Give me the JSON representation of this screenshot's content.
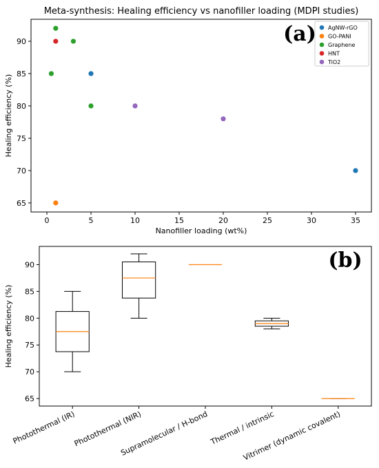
{
  "chart_data": [
    {
      "type": "scatter",
      "panel_label": "(a)",
      "title": "Meta-synthesis: Healing efficiency vs nanofiller loading (MDPI studies)",
      "xlabel": "Nanofiller loading (wt%)",
      "ylabel": "Healing efficiency (%)",
      "xlim": [
        -1.8,
        36.8
      ],
      "ylim": [
        63.6,
        93.4
      ],
      "xticks": [
        0,
        5,
        10,
        15,
        20,
        25,
        30,
        35
      ],
      "yticks": [
        65,
        70,
        75,
        80,
        85,
        90
      ],
      "legend_position": "top-right",
      "grid": false,
      "series": [
        {
          "name": "AgNW-rGO",
          "color": "#1f77b4",
          "points": [
            {
              "x": 5,
              "y": 85
            },
            {
              "x": 35,
              "y": 70
            }
          ]
        },
        {
          "name": "GO-PANI",
          "color": "#ff7f0e",
          "points": [
            {
              "x": 1,
              "y": 65
            }
          ]
        },
        {
          "name": "Graphene",
          "color": "#2ca02c",
          "points": [
            {
              "x": 1,
              "y": 92
            },
            {
              "x": 3,
              "y": 90
            },
            {
              "x": 0.5,
              "y": 85
            },
            {
              "x": 5,
              "y": 80
            }
          ]
        },
        {
          "name": "HNT",
          "color": "#d62728",
          "points": [
            {
              "x": 1,
              "y": 90
            }
          ]
        },
        {
          "name": "TiO2",
          "color": "#9467bd",
          "points": [
            {
              "x": 10,
              "y": 80
            },
            {
              "x": 20,
              "y": 78
            }
          ]
        }
      ]
    },
    {
      "type": "box",
      "panel_label": "(b)",
      "ylabel": "Healing efficiency (%)",
      "ylim": [
        63.6,
        93.4
      ],
      "yticks": [
        65,
        70,
        75,
        80,
        85,
        90
      ],
      "grid": false,
      "median_color": "#ff7f0e",
      "categories": [
        "Photothermal (IR)",
        "Photothermal (NIR)",
        "Supramolecular / H-bond",
        "Thermal / intrinsic",
        "Vitrimer (dynamic covalent)"
      ],
      "boxes": [
        {
          "whisker_low": 70,
          "q1": 73.75,
          "median": 77.5,
          "q3": 81.25,
          "whisker_high": 85
        },
        {
          "whisker_low": 80,
          "q1": 83.75,
          "median": 87.5,
          "q3": 90.5,
          "whisker_high": 92
        },
        {
          "whisker_low": 90,
          "q1": 90,
          "median": 90,
          "q3": 90,
          "whisker_high": 90
        },
        {
          "whisker_low": 78,
          "q1": 78.5,
          "median": 79,
          "q3": 79.5,
          "whisker_high": 80
        },
        {
          "whisker_low": 65,
          "q1": 65,
          "median": 65,
          "q3": 65,
          "whisker_high": 65
        }
      ]
    }
  ]
}
